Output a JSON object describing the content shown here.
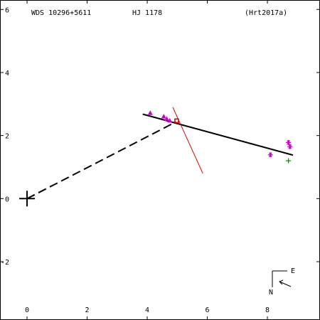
{
  "header": {
    "left": "WDS 10296+5611",
    "center": "HJ 1178",
    "right": "(Hrt2017a)"
  },
  "compass": {
    "east_label": "E",
    "north_label": "N"
  },
  "chart_data": {
    "type": "scatter",
    "title": "",
    "xlabel": "",
    "ylabel": "",
    "xlim": [
      -0.9,
      9.75
    ],
    "ylim": [
      -3.85,
      6.3
    ],
    "x_ticks": [
      "0",
      "2",
      "4",
      "6",
      "8"
    ],
    "y_ticks": [
      "-2",
      "0",
      "2",
      "4",
      "6"
    ],
    "primary": {
      "x": 0,
      "y": 0
    },
    "orbit_line": {
      "x": [
        3.85,
        8.85
      ],
      "y": [
        2.68,
        1.38
      ]
    },
    "dashed_line": {
      "x": [
        0,
        4.95
      ],
      "y": [
        0,
        2.43
      ]
    },
    "red_line": {
      "x": [
        4.85,
        5.85
      ],
      "y": [
        2.9,
        0.8
      ]
    },
    "series": [
      {
        "marker": "triangle",
        "color": "#cc00cc",
        "points": [
          [
            4.1,
            2.72
          ],
          [
            4.55,
            2.61
          ],
          [
            4.65,
            2.53
          ],
          [
            4.75,
            2.48
          ]
        ]
      },
      {
        "marker": "asterisk",
        "color": "#cc00cc",
        "points": [
          [
            8.1,
            1.39
          ],
          [
            8.7,
            1.78
          ],
          [
            8.75,
            1.65
          ]
        ]
      },
      {
        "marker": "plus",
        "color": "#009900",
        "points": [
          [
            8.7,
            1.2
          ]
        ]
      },
      {
        "marker": "square",
        "color": "#cc0000",
        "points": [
          [
            4.98,
            2.47
          ]
        ]
      }
    ]
  }
}
